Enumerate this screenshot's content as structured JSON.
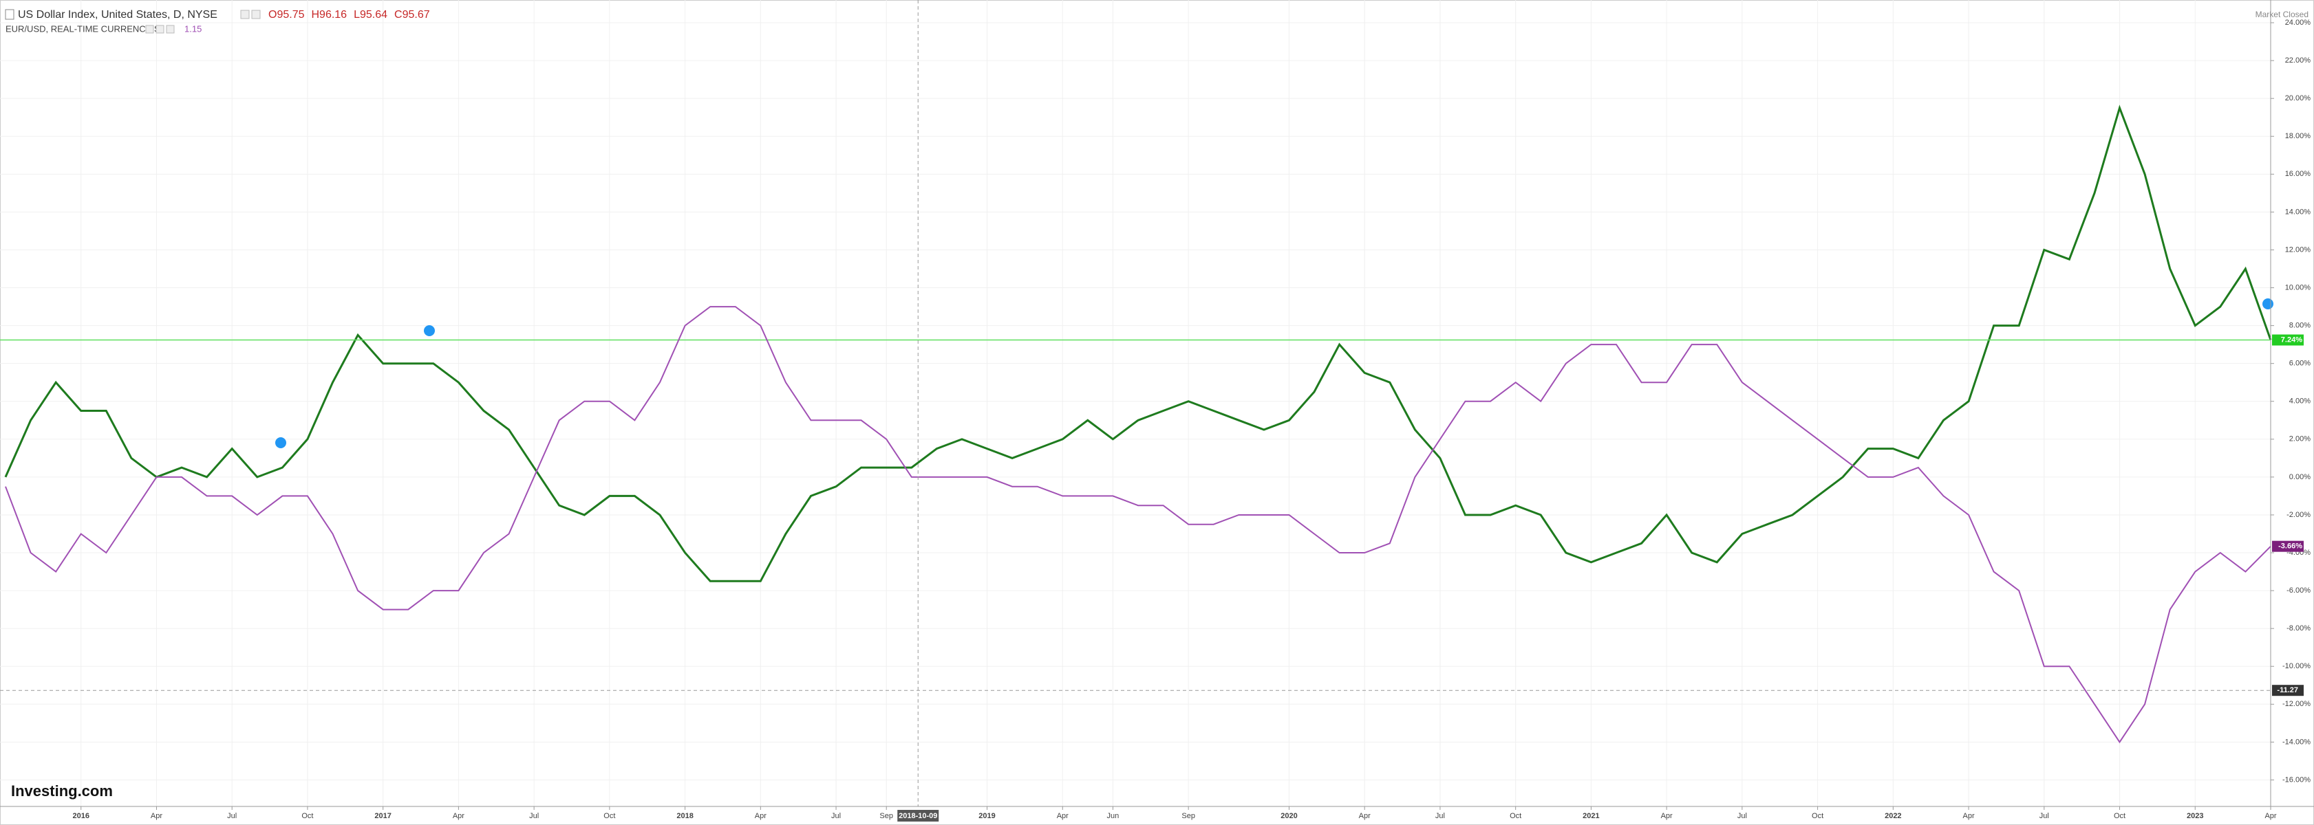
{
  "header": {
    "title": "US Dollar Index, United States, D, NYSE",
    "ohlc": [
      "O95.75",
      "H96.16",
      "L95.64",
      "C95.67"
    ],
    "subtitle": "EUR/USD, REAL-TIME CURRENCIES",
    "subtitle_value": "1.15",
    "status": "Market Closed",
    "logo": "Investing.com"
  },
  "chart_data": {
    "type": "line",
    "x": [
      "2015-10",
      "2015-11",
      "2015-12",
      "2016-01",
      "2016-02",
      "2016-03",
      "2016-04",
      "2016-05",
      "2016-06",
      "2016-07",
      "2016-08",
      "2016-09",
      "2016-10",
      "2016-11",
      "2016-12",
      "2017-01",
      "2017-02",
      "2017-03",
      "2017-04",
      "2017-05",
      "2017-06",
      "2017-07",
      "2017-08",
      "2017-09",
      "2017-10",
      "2017-11",
      "2017-12",
      "2018-01",
      "2018-02",
      "2018-03",
      "2018-04",
      "2018-05",
      "2018-06",
      "2018-07",
      "2018-08",
      "2018-09",
      "2018-10",
      "2018-11",
      "2018-12",
      "2019-01",
      "2019-02",
      "2019-03",
      "2019-04",
      "2019-05",
      "2019-06",
      "2019-07",
      "2019-08",
      "2019-09",
      "2019-10",
      "2019-11",
      "2019-12",
      "2020-01",
      "2020-02",
      "2020-03",
      "2020-04",
      "2020-05",
      "2020-06",
      "2020-07",
      "2020-08",
      "2020-09",
      "2020-10",
      "2020-11",
      "2020-12",
      "2021-01",
      "2021-02",
      "2021-03",
      "2021-04",
      "2021-05",
      "2021-06",
      "2021-07",
      "2021-08",
      "2021-09",
      "2021-10",
      "2021-11",
      "2021-12",
      "2022-01",
      "2022-02",
      "2022-03",
      "2022-04",
      "2022-05",
      "2022-06",
      "2022-07",
      "2022-08",
      "2022-09",
      "2022-10",
      "2022-11",
      "2022-12",
      "2023-01",
      "2023-02",
      "2023-03",
      "2023-04"
    ],
    "series": [
      {
        "color": "#1e7b1e",
        "tag_color": "#22cc22",
        "last_label": "7.24%",
        "values": [
          0,
          3,
          5,
          3.5,
          3.5,
          1,
          0,
          0.5,
          0,
          1.5,
          0,
          0.5,
          2,
          5,
          7.5,
          6,
          6,
          6,
          5,
          3.5,
          2.5,
          0.5,
          -1.5,
          -2,
          -1,
          -1,
          -2,
          -4,
          -5.5,
          -5.5,
          -5.5,
          -3,
          -1,
          -0.5,
          0.5,
          0.5,
          0.5,
          1.5,
          2,
          1.5,
          1,
          1.5,
          2,
          3,
          2,
          3,
          3.5,
          4,
          3.5,
          3,
          2.5,
          3,
          4.5,
          7,
          5.5,
          5,
          2.5,
          1,
          -2,
          -2,
          -1.5,
          -2,
          -4,
          -4.5,
          -4,
          -3.5,
          -2,
          -4,
          -4.5,
          -3,
          -2.5,
          -2,
          -1,
          0,
          1.5,
          1.5,
          1,
          3,
          4,
          8,
          8,
          12,
          11.5,
          15,
          19.5,
          16,
          11,
          8,
          9,
          11,
          7.24
        ]
      },
      {
        "color": "#a050b4",
        "tag_color": "#7b1f7b",
        "last_label": "-3.66%",
        "values": [
          -0.5,
          -4,
          -5,
          -3,
          -4,
          -2,
          0,
          0,
          -1,
          -1,
          -2,
          -1,
          -1,
          -3,
          -6,
          -7,
          -7,
          -6,
          -6,
          -4,
          -3,
          0,
          3,
          4,
          4,
          3,
          5,
          8,
          9,
          9,
          8,
          5,
          3,
          3,
          3,
          2,
          0,
          0,
          0,
          0,
          -0.5,
          -0.5,
          -1,
          -1,
          -1,
          -1.5,
          -1.5,
          -2.5,
          -2.5,
          -2,
          -2,
          -2,
          -3,
          -4,
          -4,
          -3.5,
          0,
          2,
          4,
          4,
          5,
          4,
          6,
          7,
          7,
          5,
          5,
          7,
          7,
          5,
          4,
          3,
          2,
          1,
          0,
          0,
          0.5,
          -1,
          -2,
          -5,
          -6,
          -10,
          -10,
          -12,
          -14,
          -12,
          -7,
          -5,
          -4,
          -5,
          -3.66
        ]
      }
    ],
    "xlim": [
      "2015-10",
      "2023-04"
    ],
    "xticks": [
      {
        "value": "2016-01",
        "label": "2016"
      },
      {
        "value": "2016-04",
        "label": "Apr"
      },
      {
        "value": "2016-07",
        "label": "Jul"
      },
      {
        "value": "2016-10",
        "label": "Oct"
      },
      {
        "value": "2017-01",
        "label": "2017"
      },
      {
        "value": "2017-04",
        "label": "Apr"
      },
      {
        "value": "2017-07",
        "label": "Jul"
      },
      {
        "value": "2017-10",
        "label": "Oct"
      },
      {
        "value": "2018-01",
        "label": "2018"
      },
      {
        "value": "2018-04",
        "label": "Apr"
      },
      {
        "value": "2018-07",
        "label": "Jul"
      },
      {
        "value": "2018-09",
        "label": "Sep"
      },
      {
        "value": "2019-01",
        "label": "2019"
      },
      {
        "value": "2019-04",
        "label": "Apr"
      },
      {
        "value": "2019-06",
        "label": "Jun"
      },
      {
        "value": "2019-09",
        "label": "Sep"
      },
      {
        "value": "2020-01",
        "label": "2020"
      },
      {
        "value": "2020-04",
        "label": "Apr"
      },
      {
        "value": "2020-07",
        "label": "Jul"
      },
      {
        "value": "2020-10",
        "label": "Oct"
      },
      {
        "value": "2021-01",
        "label": "2021"
      },
      {
        "value": "2021-04",
        "label": "Apr"
      },
      {
        "value": "2021-07",
        "label": "Jul"
      },
      {
        "value": "2021-10",
        "label": "Oct"
      },
      {
        "value": "2022-01",
        "label": "2022"
      },
      {
        "value": "2022-04",
        "label": "Apr"
      },
      {
        "value": "2022-07",
        "label": "Jul"
      },
      {
        "value": "2022-10",
        "label": "Oct"
      },
      {
        "value": "2023-01",
        "label": "2023"
      },
      {
        "value": "2023-04",
        "label": "Apr"
      }
    ],
    "ylim": [
      -17.4,
      25.2
    ],
    "yticks": [
      {
        "value": 24,
        "label": "24.00%"
      },
      {
        "value": 22,
        "label": "22.00%"
      },
      {
        "value": 20,
        "label": "20.00%"
      },
      {
        "value": 18,
        "label": "18.00%"
      },
      {
        "value": 16,
        "label": "16.00%"
      },
      {
        "value": 14,
        "label": "14.00%"
      },
      {
        "value": 12,
        "label": "12.00%"
      },
      {
        "value": 10,
        "label": "10.00%"
      },
      {
        "value": 8,
        "label": "8.00%"
      },
      {
        "value": 6,
        "label": "6.00%"
      },
      {
        "value": 4,
        "label": "4.00%"
      },
      {
        "value": 2,
        "label": "2.00%"
      },
      {
        "value": 0,
        "label": "0.00%"
      },
      {
        "value": -2,
        "label": "-2.00%"
      },
      {
        "value": -4,
        "label": "-4.00%"
      },
      {
        "value": -6,
        "label": "-6.00%"
      },
      {
        "value": -8,
        "label": "-8.00%"
      },
      {
        "value": -10,
        "label": "-10.00%"
      },
      {
        "value": -12,
        "label": "-12.00%"
      },
      {
        "value": -14,
        "label": "-14.00%"
      },
      {
        "value": -16,
        "label": "-16.00%"
      }
    ],
    "grid": true,
    "crosshair": {
      "x_label": "2018-10-09",
      "y_value": -11.27,
      "y_label": "-11.27"
    }
  }
}
